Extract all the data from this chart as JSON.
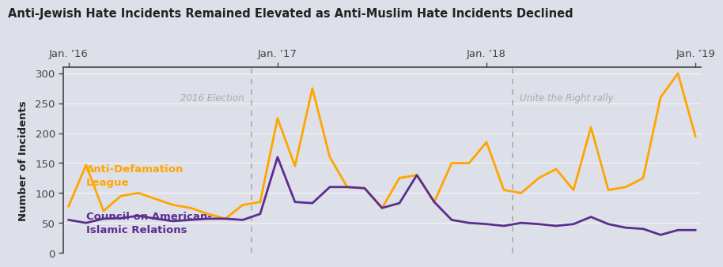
{
  "title": "Anti-Jewish Hate Incidents Remained Elevated as Anti-Muslim Hate Incidents Declined",
  "ylabel": "Number of Incidents",
  "background_color": "#dde0e8",
  "adl_color": "#FFA500",
  "cair_color": "#5B2D8E",
  "annotation_color": "#aaaaaa",
  "adl_label": "Anti-Defamation\nLeague",
  "cair_label": "Council on American-\nIslamic Relations",
  "event1_label": "2016 Election",
  "event2_label": "Unite the Right rally",
  "x_tick_labels": [
    "Jan. ’16",
    "Jan. ’17",
    "Jan. ’18",
    "Jan. ’19"
  ],
  "x_tick_positions": [
    0,
    12,
    24,
    36
  ],
  "ylim": [
    0,
    310
  ],
  "yticks": [
    0,
    50,
    100,
    150,
    200,
    250,
    300
  ],
  "event1_x": 10.5,
  "event2_x": 25.5,
  "adl_data": [
    78,
    147,
    70,
    95,
    100,
    90,
    80,
    75,
    65,
    57,
    80,
    85,
    225,
    145,
    275,
    160,
    110,
    108,
    75,
    125,
    130,
    85,
    150,
    150,
    185,
    105,
    100,
    125,
    140,
    105,
    210,
    105,
    110,
    125,
    260,
    300,
    195
  ],
  "cair_data": [
    55,
    50,
    57,
    58,
    62,
    57,
    53,
    55,
    57,
    57,
    55,
    65,
    160,
    85,
    83,
    110,
    110,
    108,
    75,
    83,
    130,
    85,
    55,
    50,
    48,
    45,
    50,
    48,
    45,
    48,
    60,
    48,
    42,
    40,
    30,
    38,
    38
  ]
}
